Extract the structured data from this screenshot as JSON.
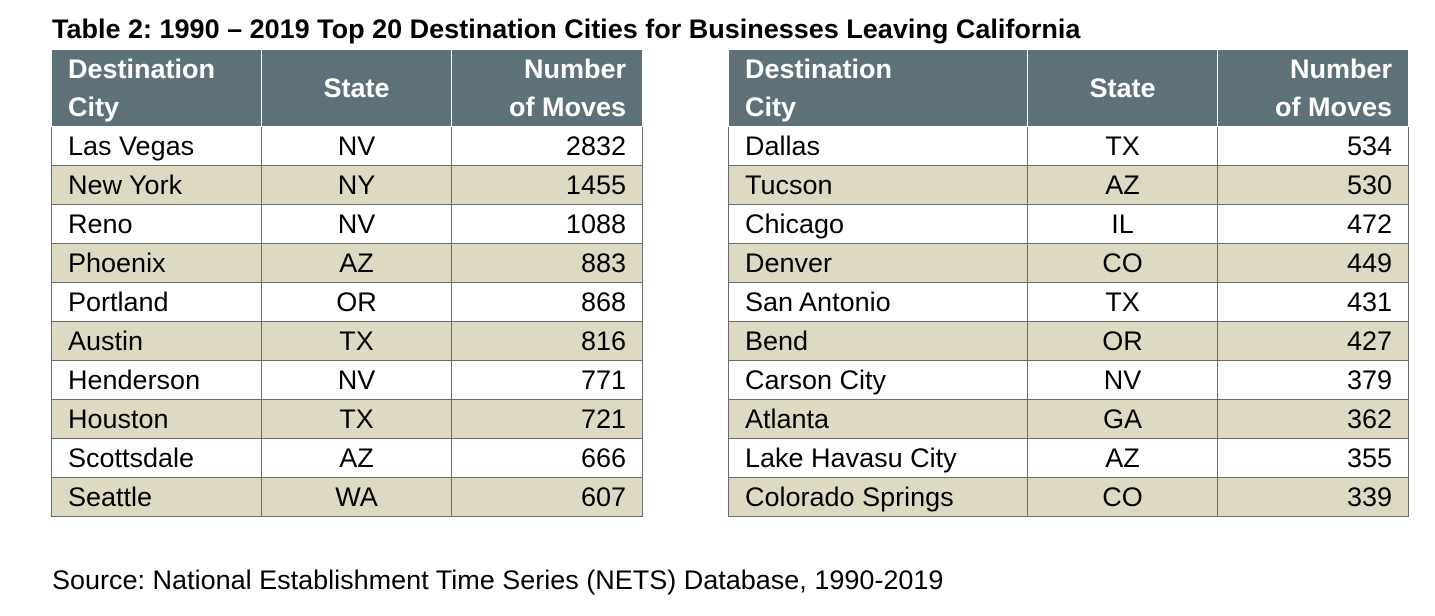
{
  "title": "Table 2:  1990 – 2019 Top 20 Destination Cities for Businesses Leaving California",
  "headers": {
    "city_line1": "Destination",
    "city_line2": "City",
    "state": "State",
    "moves_line1": "Number",
    "moves_line2": "of Moves"
  },
  "left_rows": [
    {
      "city": "Las Vegas",
      "state": "NV",
      "moves": "2832"
    },
    {
      "city": "New York",
      "state": "NY",
      "moves": "1455"
    },
    {
      "city": "Reno",
      "state": "NV",
      "moves": "1088"
    },
    {
      "city": "Phoenix",
      "state": "AZ",
      "moves": "883"
    },
    {
      "city": "Portland",
      "state": "OR",
      "moves": "868"
    },
    {
      "city": "Austin",
      "state": "TX",
      "moves": "816"
    },
    {
      "city": "Henderson",
      "state": "NV",
      "moves": "771"
    },
    {
      "city": "Houston",
      "state": "TX",
      "moves": "721"
    },
    {
      "city": "Scottsdale",
      "state": "AZ",
      "moves": "666"
    },
    {
      "city": "Seattle",
      "state": "WA",
      "moves": "607"
    }
  ],
  "right_rows": [
    {
      "city": "Dallas",
      "state": "TX",
      "moves": "534"
    },
    {
      "city": "Tucson",
      "state": "AZ",
      "moves": "530"
    },
    {
      "city": "Chicago",
      "state": "IL",
      "moves": "472"
    },
    {
      "city": "Denver",
      "state": "CO",
      "moves": "449"
    },
    {
      "city": "San Antonio",
      "state": "TX",
      "moves": "431"
    },
    {
      "city": "Bend",
      "state": "OR",
      "moves": "427"
    },
    {
      "city": "Carson City",
      "state": "NV",
      "moves": "379"
    },
    {
      "city": "Atlanta",
      "state": "GA",
      "moves": "362"
    },
    {
      "city": "Lake Havasu City",
      "state": "AZ",
      "moves": "355"
    },
    {
      "city": "Colorado Springs",
      "state": "CO",
      "moves": "339"
    }
  ],
  "source": "Source: National Establishment Time Series (NETS) Database, 1990-2019",
  "colors": {
    "header_bg": "#5e7078",
    "shaded_row": "#ddd9c3",
    "header_text": "#ffffff"
  }
}
